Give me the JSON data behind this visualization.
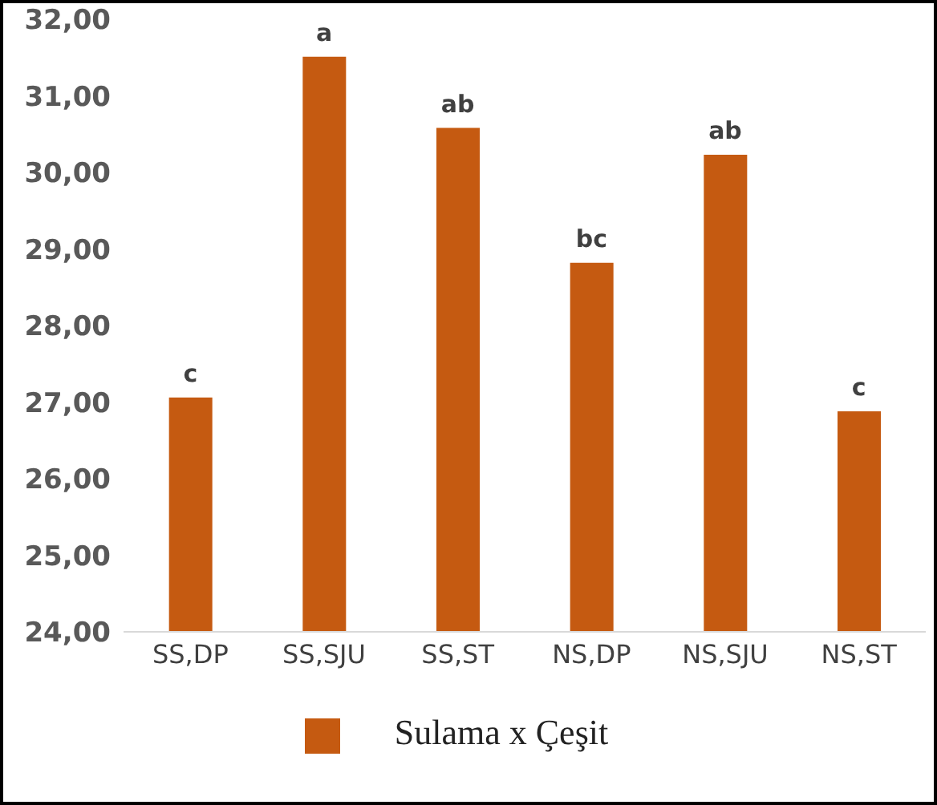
{
  "chart_data": {
    "type": "bar",
    "categories": [
      "SS,DP",
      "SS,SJU",
      "SS,ST",
      "NS,DP",
      "NS,SJU",
      "NS,ST"
    ],
    "series": [
      {
        "name": "Sulama x Çeşit",
        "color": "#c55a11",
        "values": [
          27.06,
          31.51,
          30.58,
          28.82,
          30.23,
          26.88
        ]
      }
    ],
    "ylim": [
      24,
      32
    ],
    "yticks": [
      {
        "value": 24,
        "label": "24,00"
      },
      {
        "value": 25,
        "label": "25,00"
      },
      {
        "value": 26,
        "label": "26,00"
      },
      {
        "value": 27,
        "label": "27,00"
      },
      {
        "value": 28,
        "label": "28,00"
      },
      {
        "value": 29,
        "label": "29,00"
      },
      {
        "value": 30,
        "label": "30,00"
      },
      {
        "value": 31,
        "label": "31,00"
      },
      {
        "value": 32,
        "label": "32,00"
      }
    ],
    "annotations": [
      {
        "text": "c",
        "x": "SS,DP",
        "y": 27.06
      },
      {
        "text": "a",
        "x": "SS,SJU",
        "y": 31.51
      },
      {
        "text": "ab",
        "x": "SS,ST",
        "y": 30.58
      },
      {
        "text": "bc",
        "x": "NS,DP",
        "y": 28.82
      },
      {
        "text": "ab",
        "x": "NS,SJU",
        "y": 30.23
      },
      {
        "text": "c",
        "x": "NS,ST",
        "y": 26.88
      }
    ],
    "grid": false,
    "legend": "bottom"
  }
}
